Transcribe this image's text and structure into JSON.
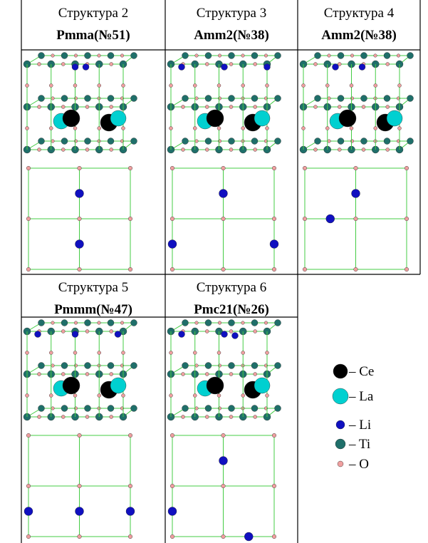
{
  "cells": [
    {
      "title": "Структура 2",
      "group": "Pmma(№51)"
    },
    {
      "title": "Структура 3",
      "group": "Amm2(№38)"
    },
    {
      "title": "Структура 4",
      "group": "Amm2(№38)"
    },
    {
      "title": "Структура 5",
      "group": "Pmmm(№47)"
    },
    {
      "title": "Структура 6",
      "group": "Pmc21(№26)"
    }
  ],
  "legend": [
    "– Ce",
    "– La",
    "– Li",
    "– Ti",
    "– O"
  ]
}
